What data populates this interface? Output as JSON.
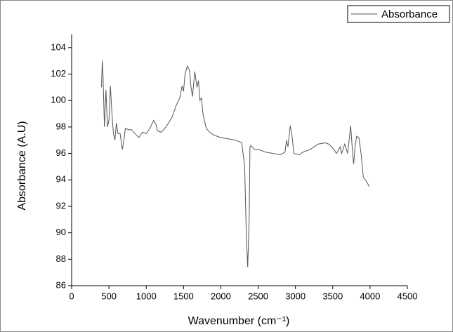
{
  "chart_data": {
    "type": "line",
    "xlabel": "Wavenumber (cm⁻¹)",
    "ylabel": "Absorbance (A.U)",
    "x": [
      400,
      410,
      420,
      440,
      460,
      480,
      500,
      520,
      540,
      560,
      580,
      600,
      620,
      650,
      680,
      700,
      720,
      760,
      800,
      850,
      900,
      950,
      1000,
      1050,
      1100,
      1130,
      1150,
      1200,
      1250,
      1300,
      1350,
      1400,
      1450,
      1480,
      1500,
      1520,
      1550,
      1580,
      1600,
      1620,
      1650,
      1680,
      1700,
      1720,
      1740,
      1760,
      1800,
      1820,
      1850,
      1900,
      2000,
      2100,
      2200,
      2280,
      2320,
      2340,
      2360,
      2380,
      2390,
      2400,
      2450,
      2500,
      2600,
      2700,
      2800,
      2860,
      2880,
      2900,
      2930,
      2950,
      2980,
      3050,
      3100,
      3200,
      3300,
      3400,
      3450,
      3500,
      3550,
      3600,
      3620,
      3660,
      3700,
      3740,
      3760,
      3780,
      3800,
      3820,
      3850,
      3880,
      3910,
      3950,
      3990
    ],
    "series": [
      {
        "name": "Absorbance",
        "color": "#555555",
        "values": [
          101,
          103,
          102,
          98,
          100.8,
          98,
          98.5,
          101.1,
          99,
          97.5,
          97,
          98.3,
          97.5,
          97.5,
          96.3,
          97,
          97.9,
          97.8,
          97.8,
          97.5,
          97.2,
          97.6,
          97.5,
          97.9,
          98.5,
          98.2,
          97.7,
          97.6,
          97.9,
          98.3,
          98.8,
          99.6,
          100.2,
          101.1,
          100.7,
          102,
          102.6,
          102.3,
          101,
          100.3,
          102.2,
          101,
          101.5,
          100,
          100.2,
          99,
          98,
          97.8,
          97.6,
          97.4,
          97.2,
          97.1,
          97,
          96.8,
          95,
          90,
          87.4,
          91,
          96.5,
          96.6,
          96.3,
          96.3,
          96.1,
          96,
          95.9,
          96.1,
          97,
          96.5,
          98.1,
          97.5,
          96,
          95.9,
          96.1,
          96.3,
          96.7,
          96.8,
          96.7,
          96.4,
          96,
          96.5,
          96,
          96.7,
          96,
          98.1,
          96.5,
          95.2,
          96.5,
          97.3,
          97.2,
          96,
          94.2,
          93.9,
          93.5
        ]
      }
    ],
    "xlim": [
      0,
      4500
    ],
    "xticks": [
      0,
      500,
      1000,
      1500,
      2000,
      2500,
      3000,
      3500,
      4000,
      4500
    ],
    "ylim": [
      86,
      105
    ],
    "yticks": [
      86,
      88,
      90,
      92,
      94,
      96,
      98,
      100,
      102,
      104
    ],
    "legend": "top-right"
  }
}
